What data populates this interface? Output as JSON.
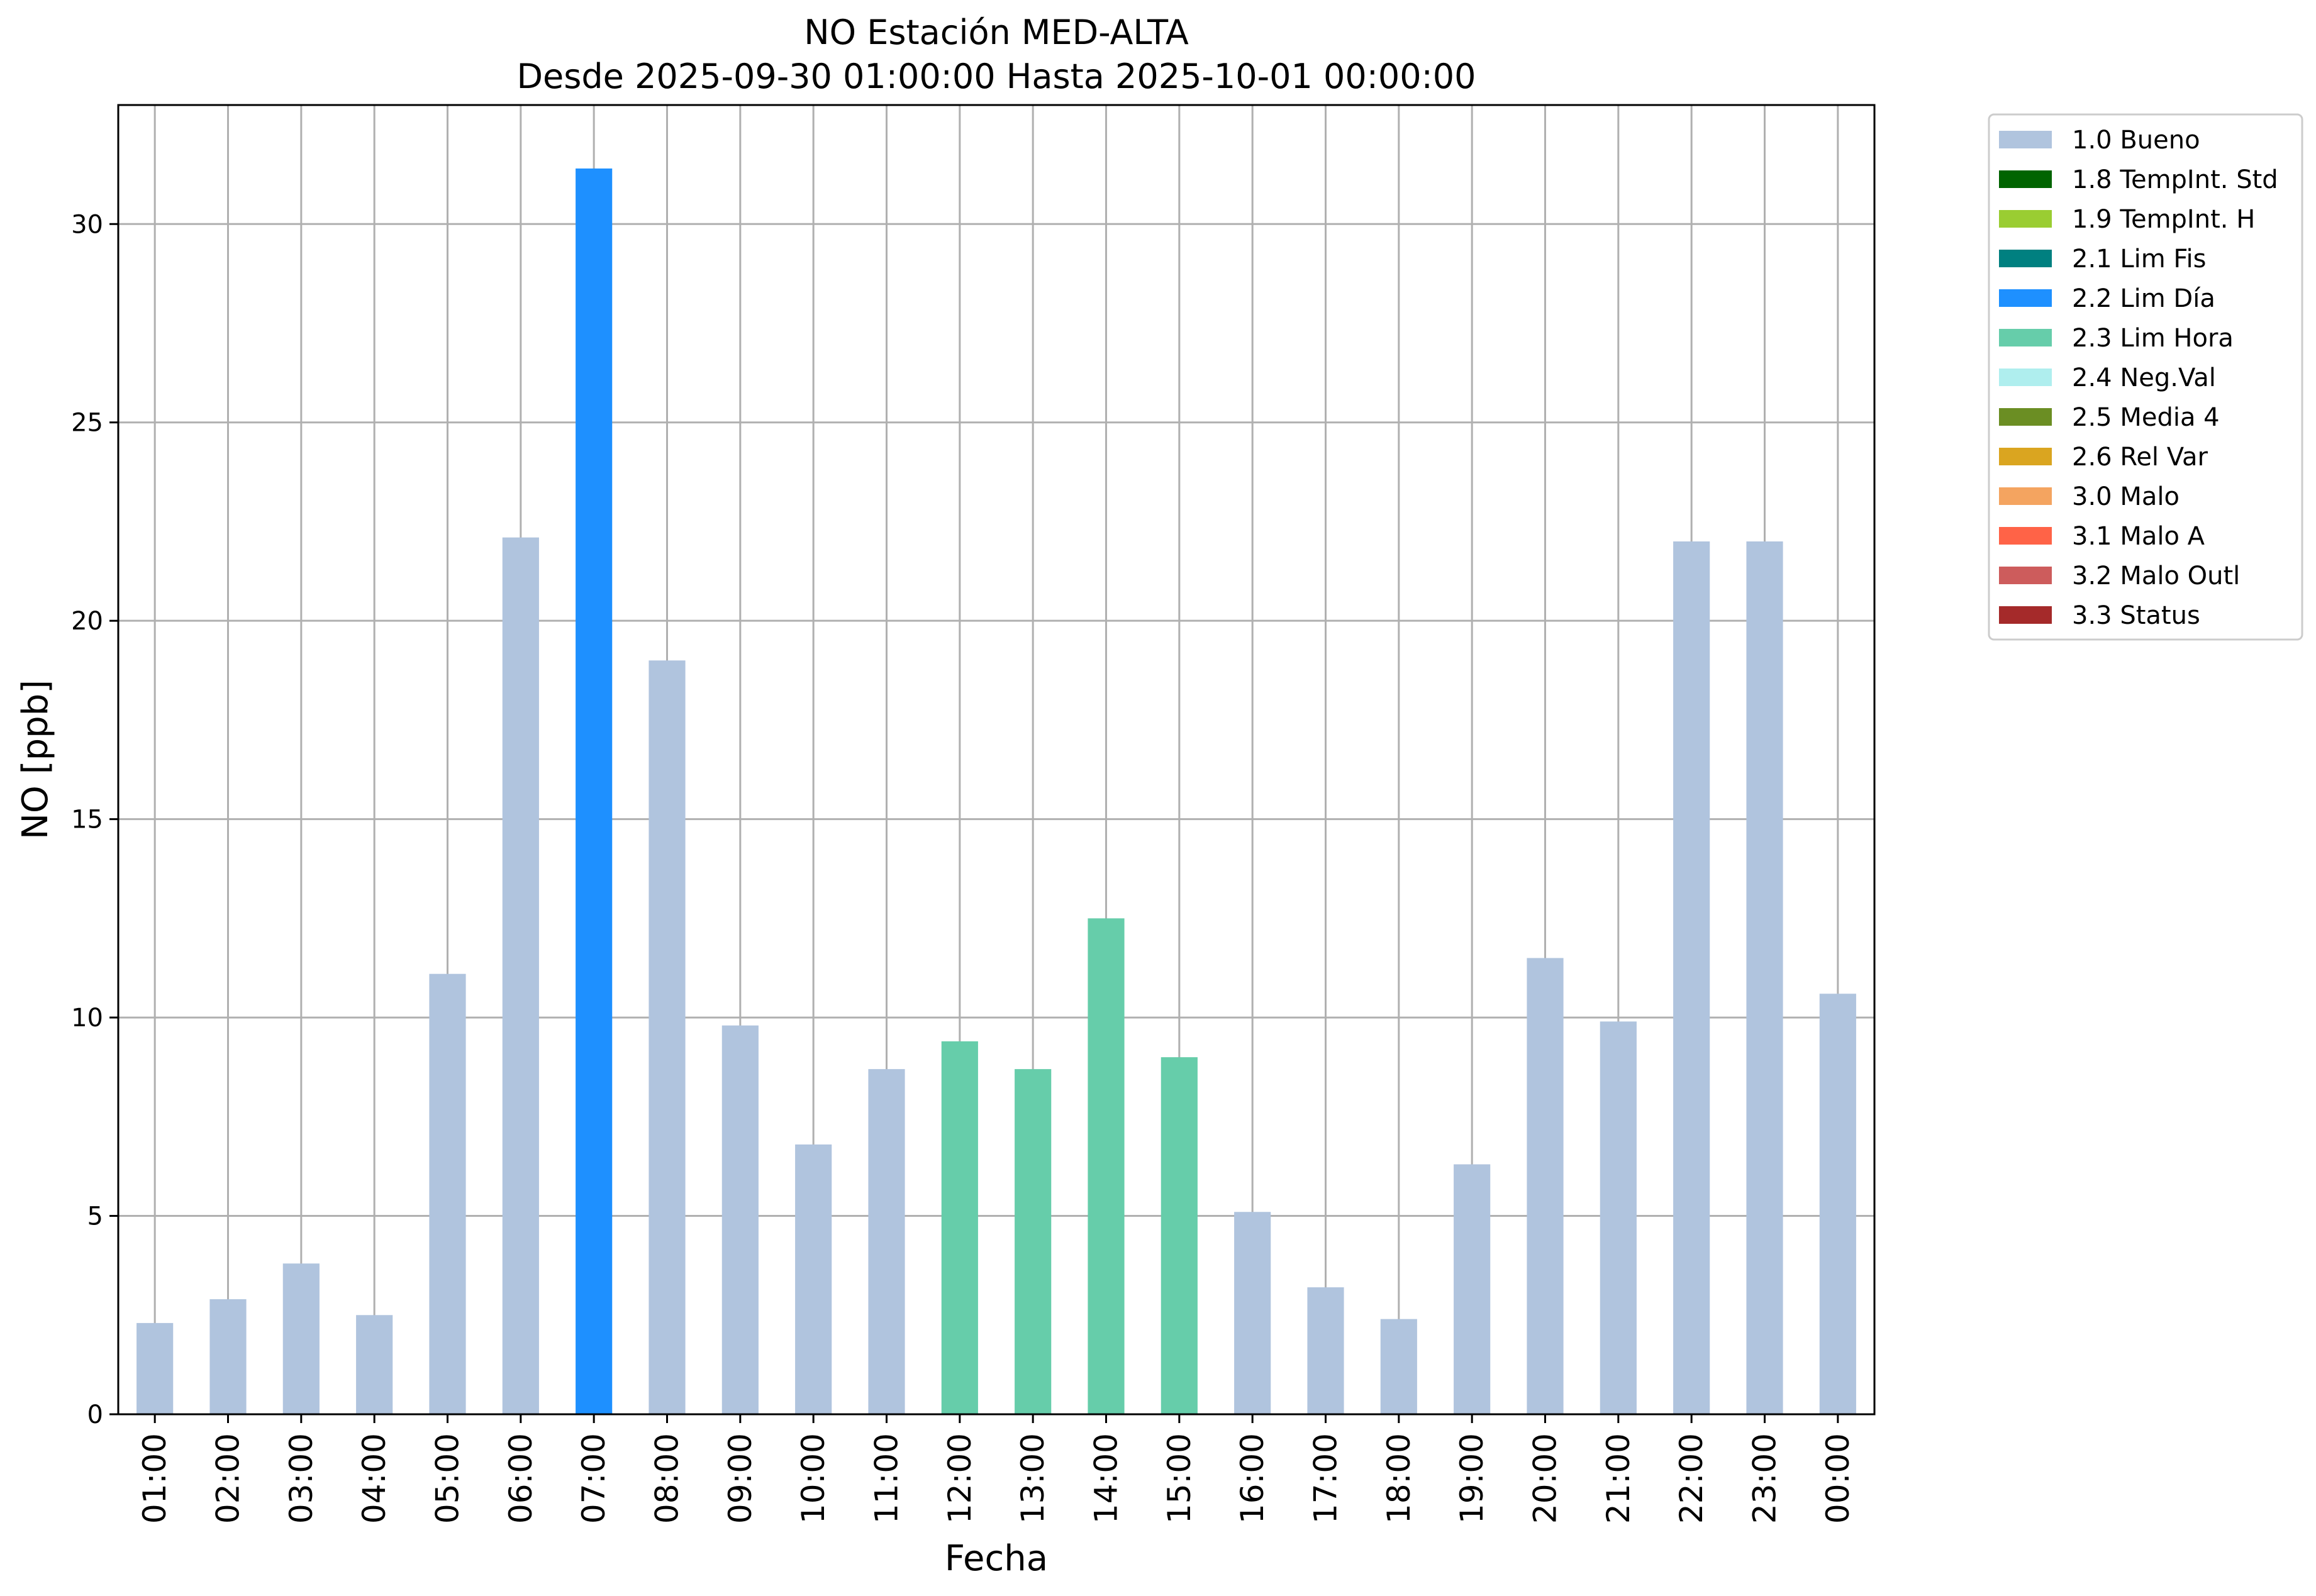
{
  "chart_data": {
    "type": "bar",
    "title": "NO Estación MED-ALTA",
    "subtitle": "Desde 2025-09-30 01:00:00 Hasta 2025-10-01 00:00:00",
    "xlabel": "Fecha",
    "ylabel": "NO [ppb]",
    "ylim": [
      0,
      33
    ],
    "yticks": [
      0,
      5,
      10,
      15,
      20,
      25,
      30
    ],
    "grid": true,
    "legend_position": "outside-top-right",
    "categories": [
      "01:00",
      "02:00",
      "03:00",
      "04:00",
      "05:00",
      "06:00",
      "07:00",
      "08:00",
      "09:00",
      "10:00",
      "11:00",
      "12:00",
      "13:00",
      "14:00",
      "15:00",
      "16:00",
      "17:00",
      "18:00",
      "19:00",
      "20:00",
      "21:00",
      "22:00",
      "23:00",
      "00:00"
    ],
    "values": [
      2.3,
      2.9,
      3.8,
      2.5,
      11.1,
      22.1,
      31.4,
      19.0,
      9.8,
      6.8,
      8.7,
      9.4,
      8.7,
      12.5,
      9.0,
      5.1,
      3.2,
      2.4,
      6.3,
      11.5,
      9.9,
      22.0,
      22.0,
      10.6
    ],
    "flags": [
      "1.0 Bueno",
      "1.0 Bueno",
      "1.0 Bueno",
      "1.0 Bueno",
      "1.0 Bueno",
      "1.0 Bueno",
      "2.2 Lim Día",
      "1.0 Bueno",
      "1.0 Bueno",
      "1.0 Bueno",
      "1.0 Bueno",
      "2.3 Lim Hora",
      "2.3 Lim Hora",
      "2.3 Lim Hora",
      "2.3 Lim Hora",
      "1.0 Bueno",
      "1.0 Bueno",
      "1.0 Bueno",
      "1.0 Bueno",
      "1.0 Bueno",
      "1.0 Bueno",
      "1.0 Bueno",
      "1.0 Bueno",
      "1.0 Bueno"
    ],
    "legend": [
      {
        "label": "1.0 Bueno",
        "color": "#b0c4de"
      },
      {
        "label": "1.8 TempInt. Std",
        "color": "#006400"
      },
      {
        "label": "1.9 TempInt. H",
        "color": "#9acd32"
      },
      {
        "label": "2.1 Lim Fis",
        "color": "#008080"
      },
      {
        "label": "2.2 Lim Día",
        "color": "#1e90ff"
      },
      {
        "label": "2.3 Lim Hora",
        "color": "#66cdaa"
      },
      {
        "label": "2.4 Neg.Val",
        "color": "#afeeee"
      },
      {
        "label": "2.5 Media 4",
        "color": "#6b8e23"
      },
      {
        "label": "2.6 Rel Var",
        "color": "#daa520"
      },
      {
        "label": "3.0 Malo",
        "color": "#f4a460"
      },
      {
        "label": "3.1 Malo A",
        "color": "#ff6347"
      },
      {
        "label": "3.2 Malo Outl",
        "color": "#cd5c5c"
      },
      {
        "label": "3.3 Status",
        "color": "#a52a2a"
      }
    ]
  }
}
